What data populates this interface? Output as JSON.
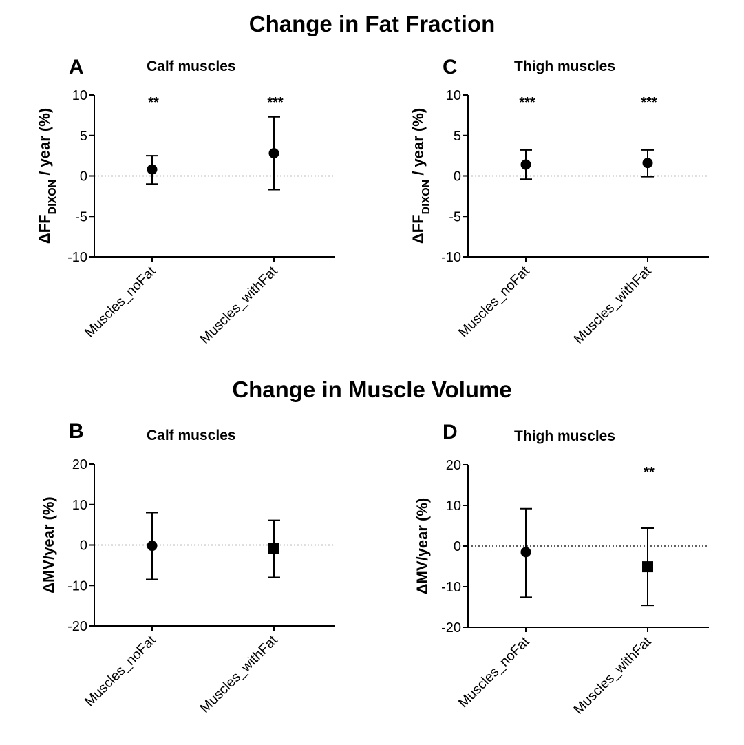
{
  "titles": {
    "fat_fraction": "Change in Fat Fraction",
    "muscle_volume": "Change in Muscle Volume"
  },
  "colors": {
    "ink": "#000000",
    "background": "#ffffff"
  },
  "chart_data": [
    {
      "id": "A",
      "type": "scatter",
      "letter": "A",
      "title": "Calf muscles",
      "ylabel": {
        "delta": "Δ",
        "main": "FF",
        "sub": "DIXON",
        "tail": " / year (%)"
      },
      "ylim": [
        -10,
        10
      ],
      "yticks": [
        10,
        5,
        0,
        -5,
        -10
      ],
      "ytick_labels": [
        "10",
        "5",
        "0",
        "-5",
        "-10"
      ],
      "categories": [
        "Muscles_noFat",
        "Muscles_withFat"
      ],
      "series": [
        {
          "name": "Muscles_noFat",
          "marker": "circle",
          "mean": 0.8,
          "upper": 2.5,
          "lower": -1.0,
          "significance": "**"
        },
        {
          "name": "Muscles_withFat",
          "marker": "circle",
          "mean": 2.8,
          "upper": 7.3,
          "lower": -1.7,
          "significance": "***"
        }
      ],
      "reference_line": 0
    },
    {
      "id": "C",
      "type": "scatter",
      "letter": "C",
      "title": "Thigh muscles",
      "ylabel": {
        "delta": "Δ",
        "main": "FF",
        "sub": "DIXON",
        "tail": " / year (%)"
      },
      "ylim": [
        -10,
        10
      ],
      "yticks": [
        10,
        5,
        0,
        -5,
        -10
      ],
      "ytick_labels": [
        "10",
        "5",
        "0",
        "-5",
        "-10"
      ],
      "categories": [
        "Muscles_noFat",
        "Muscles_withFat"
      ],
      "series": [
        {
          "name": "Muscles_noFat",
          "marker": "circle",
          "mean": 1.4,
          "upper": 3.2,
          "lower": -0.4,
          "significance": "***"
        },
        {
          "name": "Muscles_withFat",
          "marker": "circle",
          "mean": 1.6,
          "upper": 3.2,
          "lower": -0.1,
          "significance": "***"
        }
      ],
      "reference_line": 0
    },
    {
      "id": "B",
      "type": "scatter",
      "letter": "B",
      "title": "Calf muscles",
      "ylabel": {
        "delta": "Δ",
        "main": "MV/year  (%)",
        "sub": "",
        "tail": ""
      },
      "ylim": [
        -20,
        20
      ],
      "yticks": [
        20,
        10,
        0,
        -10,
        -20
      ],
      "ytick_labels": [
        "20",
        "10",
        "0",
        "-10",
        "-20"
      ],
      "categories": [
        "Muscles_noFat",
        "Muscles_withFat"
      ],
      "series": [
        {
          "name": "Muscles_noFat",
          "marker": "circle",
          "mean": -0.2,
          "upper": 8.0,
          "lower": -8.5,
          "significance": ""
        },
        {
          "name": "Muscles_withFat",
          "marker": "square",
          "mean": -0.9,
          "upper": 6.1,
          "lower": -8.0,
          "significance": ""
        }
      ],
      "reference_line": 0
    },
    {
      "id": "D",
      "type": "scatter",
      "letter": "D",
      "title": "Thigh muscles",
      "ylabel": {
        "delta": "Δ",
        "main": "MV/year  (%)",
        "sub": "",
        "tail": ""
      },
      "ylim": [
        -20,
        20
      ],
      "yticks": [
        20,
        10,
        0,
        -10,
        -20
      ],
      "ytick_labels": [
        "20",
        "10",
        "0",
        "-10",
        "-20"
      ],
      "categories": [
        "Muscles_noFat",
        "Muscles_withFat"
      ],
      "series": [
        {
          "name": "Muscles_noFat",
          "marker": "circle",
          "mean": -1.5,
          "upper": 9.2,
          "lower": -12.6,
          "significance": ""
        },
        {
          "name": "Muscles_withFat",
          "marker": "square",
          "mean": -5.1,
          "upper": 4.4,
          "lower": -14.6,
          "significance": "**"
        }
      ],
      "reference_line": 0
    }
  ]
}
